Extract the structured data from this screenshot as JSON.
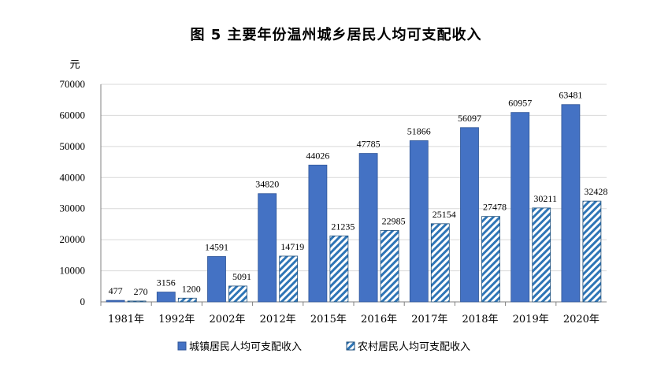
{
  "title": "图 5    主要年份温州城乡居民人均可支配收入",
  "chart_data": {
    "type": "bar",
    "title": "图 5    主要年份温州城乡居民人均可支配收入",
    "ylabel": "元",
    "xlabel": "",
    "ylim": [
      0,
      70000
    ],
    "yticks": [
      "0",
      "10000",
      "20000",
      "30000",
      "40000",
      "50000",
      "60000",
      "70000"
    ],
    "grid": true,
    "legend_position": "bottom",
    "categories": [
      "1981年",
      "1992年",
      "2002年",
      "2012年",
      "2015年",
      "2016年",
      "2017年",
      "2018年",
      "2019年",
      "2020年"
    ],
    "series": [
      {
        "name": "城镇居民人均可支配收入",
        "color": "#4472C4",
        "pattern": "solid",
        "values": [
          477,
          3156,
          14591,
          34820,
          44026,
          47785,
          51866,
          56097,
          60957,
          63481
        ]
      },
      {
        "name": "农村居民人均可支配收入",
        "color": "#2E75B6",
        "pattern": "diagonal-hatch",
        "values": [
          270,
          1200,
          5091,
          14719,
          21235,
          22985,
          25154,
          27478,
          30211,
          32428
        ]
      }
    ]
  }
}
